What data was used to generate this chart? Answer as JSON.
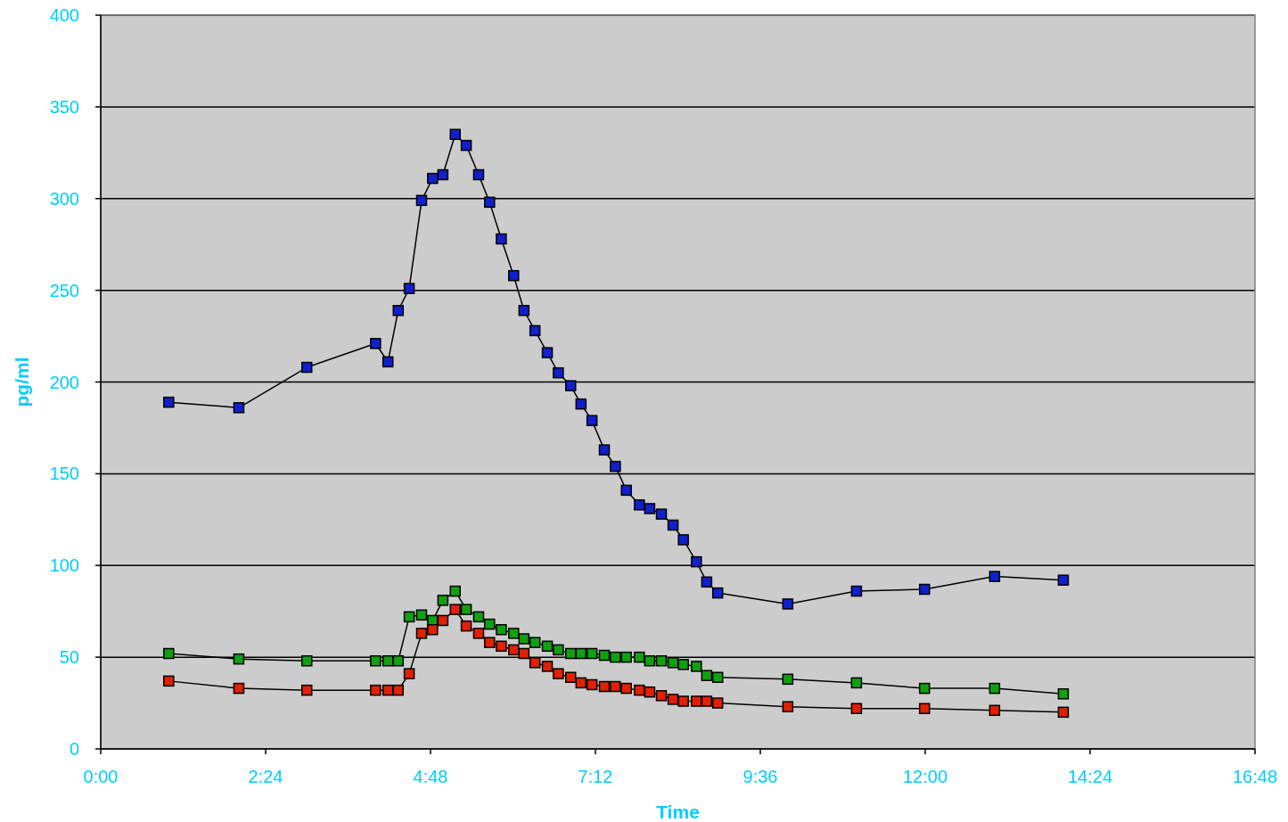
{
  "chart_data": {
    "type": "line",
    "xlabel": "Time",
    "ylabel": "pg/ml",
    "x": [
      0.99,
      2.01,
      3.0,
      4.0,
      4.18,
      4.33,
      4.49,
      4.67,
      4.83,
      4.98,
      5.16,
      5.32,
      5.5,
      5.66,
      5.83,
      6.01,
      6.16,
      6.32,
      6.5,
      6.66,
      6.84,
      6.99,
      7.15,
      7.33,
      7.49,
      7.65,
      7.84,
      7.99,
      8.16,
      8.33,
      8.48,
      8.67,
      8.82,
      8.98,
      10.0,
      11.0,
      11.99,
      13.01,
      14.01
    ],
    "series": [
      {
        "color": "#1020cc",
        "values": [
          189,
          186,
          208,
          221,
          211,
          239,
          251,
          299,
          311,
          313,
          335,
          329,
          313,
          298,
          278,
          258,
          239,
          228,
          216,
          205,
          198,
          188,
          179,
          163,
          154,
          141,
          133,
          131,
          128,
          122,
          114,
          102,
          91,
          85,
          79,
          86,
          87,
          94,
          92
        ]
      },
      {
        "color": "#10a010",
        "values": [
          52,
          49,
          48,
          48,
          48,
          48,
          72,
          73,
          70,
          81,
          86,
          76,
          72,
          68,
          65,
          63,
          60,
          58,
          56,
          54,
          52,
          52,
          52,
          51,
          50,
          50,
          50,
          48,
          48,
          47,
          46,
          45,
          40,
          39,
          38,
          36,
          33,
          33,
          30
        ]
      },
      {
        "color": "#e02000",
        "values": [
          37,
          33,
          32,
          32,
          32,
          32,
          41,
          63,
          65,
          70,
          76,
          67,
          63,
          58,
          56,
          54,
          52,
          47,
          45,
          41,
          39,
          36,
          35,
          34,
          34,
          33,
          32,
          31,
          29,
          27,
          26,
          26,
          26,
          25,
          23,
          22,
          22,
          21,
          20
        ]
      }
    ],
    "xlim": [
      0,
      16.8
    ],
    "xticks": [
      {
        "value": 0,
        "label": "0:00"
      },
      {
        "value": 2.4,
        "label": "2:24"
      },
      {
        "value": 4.8,
        "label": "4:48"
      },
      {
        "value": 7.2,
        "label": "7:12"
      },
      {
        "value": 9.6,
        "label": "9:36"
      },
      {
        "value": 12,
        "label": "12:00"
      },
      {
        "value": 14.4,
        "label": "14:24"
      },
      {
        "value": 16.8,
        "label": "16:48"
      }
    ],
    "ylim": [
      0,
      400
    ],
    "yticks": [
      0,
      50,
      100,
      150,
      200,
      250,
      300,
      350,
      400
    ],
    "grid": "y",
    "marker": "square",
    "line_style": "solid"
  }
}
